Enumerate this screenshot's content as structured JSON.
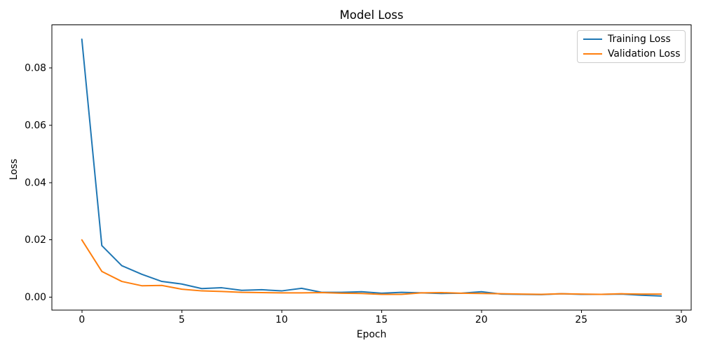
{
  "chart_data": {
    "type": "line",
    "title": "Model Loss",
    "xlabel": "Epoch",
    "ylabel": "Loss",
    "x": [
      0,
      1,
      2,
      3,
      4,
      5,
      6,
      7,
      8,
      9,
      10,
      11,
      12,
      13,
      14,
      15,
      16,
      17,
      18,
      19,
      20,
      21,
      22,
      23,
      24,
      25,
      26,
      27,
      28,
      29
    ],
    "series": [
      {
        "name": "Training Loss",
        "color": "#1f77b4",
        "values": [
          0.09,
          0.018,
          0.011,
          0.008,
          0.0055,
          0.0046,
          0.003,
          0.0033,
          0.0024,
          0.0026,
          0.0022,
          0.0031,
          0.0017,
          0.0017,
          0.0019,
          0.0014,
          0.0017,
          0.0015,
          0.0013,
          0.0014,
          0.0019,
          0.0011,
          0.001,
          0.0009,
          0.0012,
          0.001,
          0.001,
          0.0011,
          0.0007,
          0.0004
        ]
      },
      {
        "name": "Validation Loss",
        "color": "#ff7f0e",
        "values": [
          0.02,
          0.009,
          0.0055,
          0.004,
          0.0041,
          0.0028,
          0.0022,
          0.002,
          0.0017,
          0.0016,
          0.0015,
          0.0015,
          0.0016,
          0.0014,
          0.0013,
          0.001,
          0.001,
          0.0015,
          0.0016,
          0.0014,
          0.0013,
          0.0012,
          0.0011,
          0.001,
          0.0012,
          0.0011,
          0.001,
          0.0012,
          0.0011,
          0.0011
        ]
      }
    ],
    "xlim": [
      -1.5,
      30.5
    ],
    "ylim": [
      -0.0045,
      0.095
    ],
    "xticks": {
      "values": [
        0,
        5,
        10,
        15,
        20,
        25,
        30
      ],
      "labels": [
        "0",
        "5",
        "10",
        "15",
        "20",
        "25",
        "30"
      ]
    },
    "yticks": {
      "values": [
        0.0,
        0.02,
        0.04,
        0.06,
        0.08
      ],
      "labels": [
        "0.00",
        "0.02",
        "0.04",
        "0.06",
        "0.08"
      ]
    },
    "grid": false,
    "legend_position": "upper right",
    "axis_color": "#000000",
    "background_color": "#ffffff",
    "line_width": 2
  }
}
